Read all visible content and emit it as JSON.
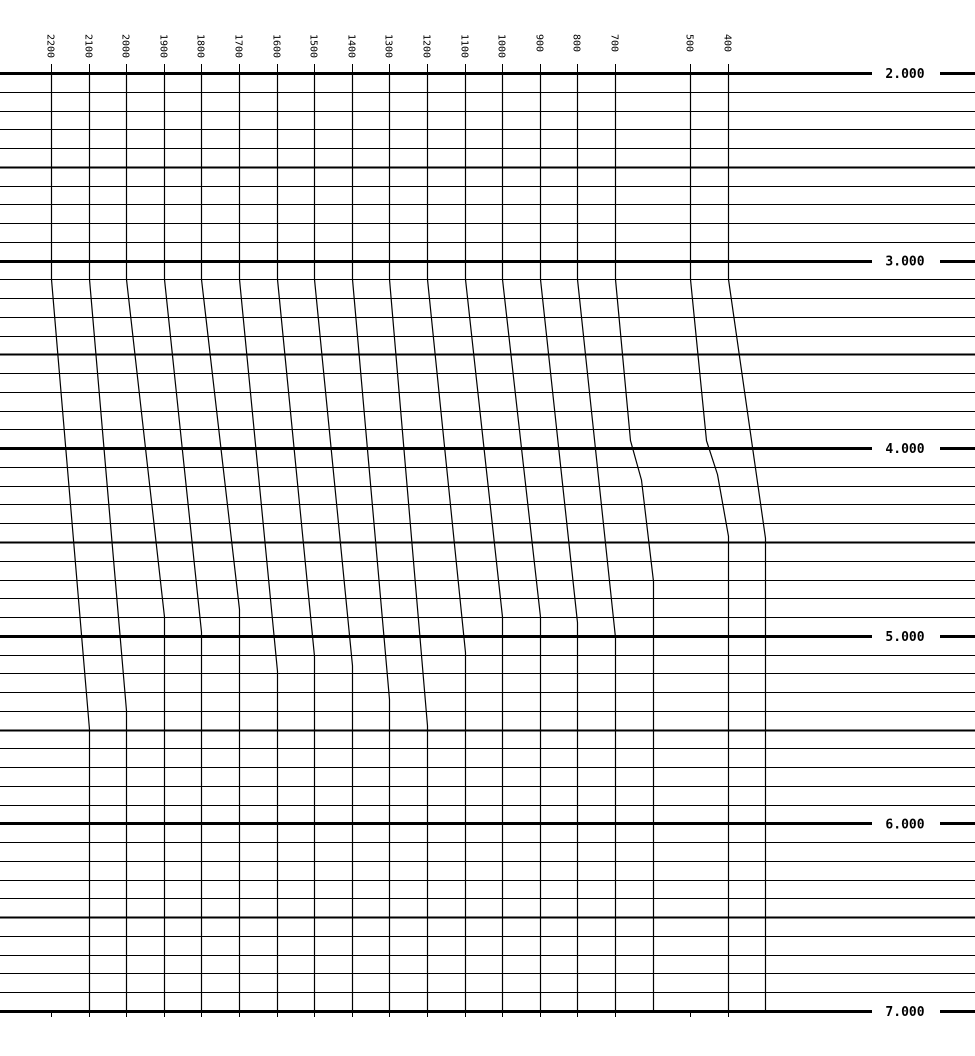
{
  "chart_data": {
    "type": "line",
    "title": "",
    "xlabel": "",
    "ylabel": "",
    "y_axis": {
      "range": [
        2.0,
        7.0
      ],
      "inverted": true,
      "tick_labels": [
        "2.000",
        "3.000",
        "4.000",
        "5.000",
        "6.000",
        "7.000"
      ],
      "minor_grid_step": 0.1,
      "medium_grid_step": 0.5,
      "major_grid_step": 1.0,
      "label_position": "right"
    },
    "x_axis": {
      "unit": "trace column",
      "range": [
        0,
        19
      ]
    },
    "grid": true,
    "line_color": "#000000",
    "background_color": "#ffffff",
    "series": [
      {
        "name": "2200",
        "points": [
          [
            0,
            2.0
          ],
          [
            0,
            3.1
          ],
          [
            1,
            5.5
          ],
          [
            1,
            7.0
          ]
        ]
      },
      {
        "name": "2100",
        "points": [
          [
            1,
            2.0
          ],
          [
            1,
            3.1
          ],
          [
            2,
            5.4
          ],
          [
            2,
            7.0
          ]
        ]
      },
      {
        "name": "2000",
        "points": [
          [
            2,
            2.0
          ],
          [
            2,
            3.1
          ],
          [
            3,
            4.9
          ],
          [
            3,
            7.0
          ]
        ]
      },
      {
        "name": "1900",
        "points": [
          [
            3,
            2.0
          ],
          [
            3,
            3.1
          ],
          [
            4,
            4.98
          ],
          [
            4,
            7.0
          ]
        ]
      },
      {
        "name": "1800",
        "points": [
          [
            4,
            2.0
          ],
          [
            4,
            3.1
          ],
          [
            5,
            4.86
          ],
          [
            5,
            7.0
          ]
        ]
      },
      {
        "name": "1700",
        "points": [
          [
            5,
            2.0
          ],
          [
            5,
            3.1
          ],
          [
            6,
            5.19
          ],
          [
            6,
            7.0
          ]
        ]
      },
      {
        "name": "1600",
        "points": [
          [
            6,
            2.0
          ],
          [
            6,
            3.1
          ],
          [
            7,
            5.11
          ],
          [
            7,
            7.0
          ]
        ]
      },
      {
        "name": "1500",
        "points": [
          [
            7,
            2.0
          ],
          [
            7,
            3.1
          ],
          [
            8,
            5.16
          ],
          [
            8,
            7.0
          ]
        ]
      },
      {
        "name": "1400",
        "points": [
          [
            8,
            2.0
          ],
          [
            8,
            3.1
          ],
          [
            9,
            5.34
          ],
          [
            9,
            7.0
          ]
        ]
      },
      {
        "name": "1300",
        "points": [
          [
            9,
            2.0
          ],
          [
            9,
            3.1
          ],
          [
            10,
            5.48
          ],
          [
            10,
            7.0
          ]
        ]
      },
      {
        "name": "1200",
        "points": [
          [
            10,
            2.0
          ],
          [
            10,
            3.1
          ],
          [
            11,
            5.09
          ],
          [
            11,
            7.0
          ]
        ]
      },
      {
        "name": "1100",
        "points": [
          [
            11,
            2.0
          ],
          [
            11,
            3.1
          ],
          [
            12,
            4.9
          ],
          [
            12,
            7.0
          ]
        ]
      },
      {
        "name": "1000",
        "points": [
          [
            12,
            2.0
          ],
          [
            12,
            3.1
          ],
          [
            13,
            4.9
          ],
          [
            13,
            7.0
          ]
        ]
      },
      {
        "name": "900",
        "points": [
          [
            13,
            2.0
          ],
          [
            13,
            3.1
          ],
          [
            14,
            4.93
          ],
          [
            14,
            7.0
          ]
        ]
      },
      {
        "name": "800",
        "points": [
          [
            14,
            2.0
          ],
          [
            14,
            3.1
          ],
          [
            15,
            5.01
          ],
          [
            15,
            7.0
          ]
        ]
      },
      {
        "name": "700",
        "points": [
          [
            15,
            2.0
          ],
          [
            15,
            3.1
          ],
          [
            15.4,
            3.96
          ],
          [
            15.7,
            4.17
          ],
          [
            16,
            4.71
          ],
          [
            16,
            7.0
          ]
        ]
      },
      {
        "name": "500",
        "points": [
          [
            17,
            2.0
          ],
          [
            17,
            3.1
          ],
          [
            17.43,
            3.96
          ],
          [
            17.7,
            4.14
          ],
          [
            18,
            4.47
          ],
          [
            18,
            7.0
          ]
        ]
      },
      {
        "name": "400",
        "points": [
          [
            18,
            2.0
          ],
          [
            18,
            3.1
          ],
          [
            19,
            4.48
          ],
          [
            19,
            7.0
          ]
        ]
      }
    ]
  }
}
